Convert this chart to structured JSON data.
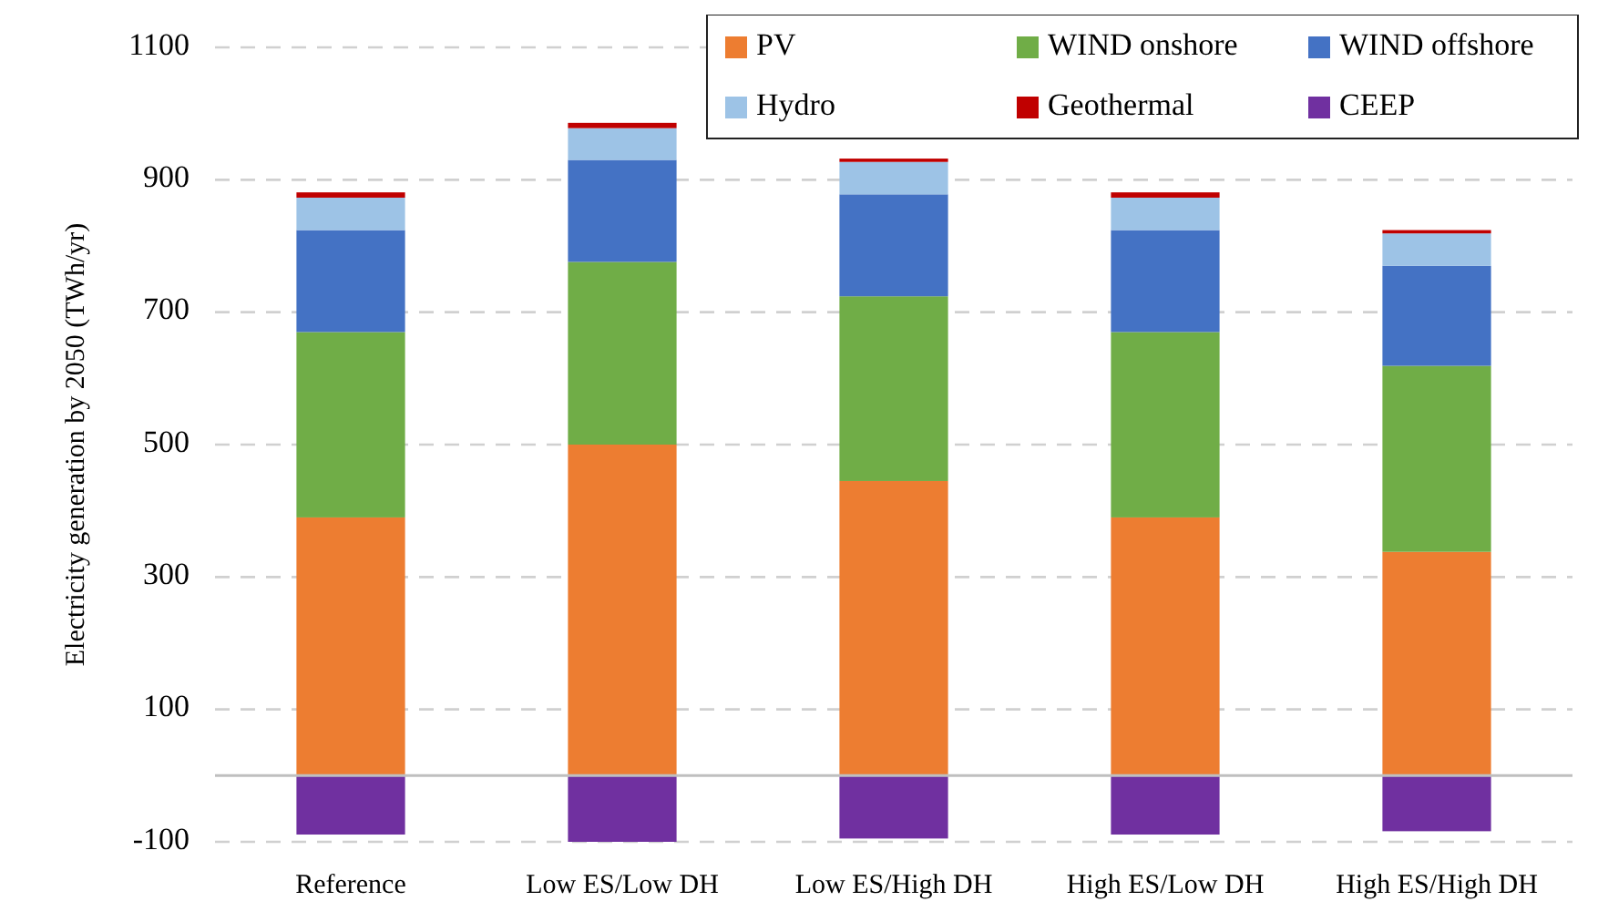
{
  "chart_data": {
    "type": "bar",
    "stacked": true,
    "ylabel": "Electricity generation by 2050 (TWh/yr)",
    "categories": [
      "Reference",
      "Low ES/Low DH",
      "Low ES/High DH",
      "High ES/Low DH",
      "High ES/High DH"
    ],
    "series": [
      {
        "name": "PV",
        "color": "#ed7d31",
        "values": [
          390,
          500,
          445,
          390,
          338
        ]
      },
      {
        "name": "WIND onshore",
        "color": "#70ad47",
        "values": [
          280,
          276,
          279,
          280,
          281
        ]
      },
      {
        "name": "WIND offshore",
        "color": "#4472c4",
        "values": [
          154,
          154,
          154,
          154,
          151
        ]
      },
      {
        "name": "Hydro",
        "color": "#9dc3e6",
        "values": [
          49,
          48,
          49,
          49,
          49
        ]
      },
      {
        "name": "Geothermal",
        "color": "#c00000",
        "values": [
          8,
          8,
          5,
          8,
          5
        ]
      },
      {
        "name": "CEEP",
        "color": "#7030a0",
        "values": [
          -89,
          -100,
          -95,
          -89,
          -84
        ]
      }
    ],
    "ylim": [
      -100,
      1100
    ],
    "yticks": [
      -100,
      100,
      300,
      500,
      700,
      900,
      1100
    ],
    "grid": "y",
    "legend": "top right"
  }
}
